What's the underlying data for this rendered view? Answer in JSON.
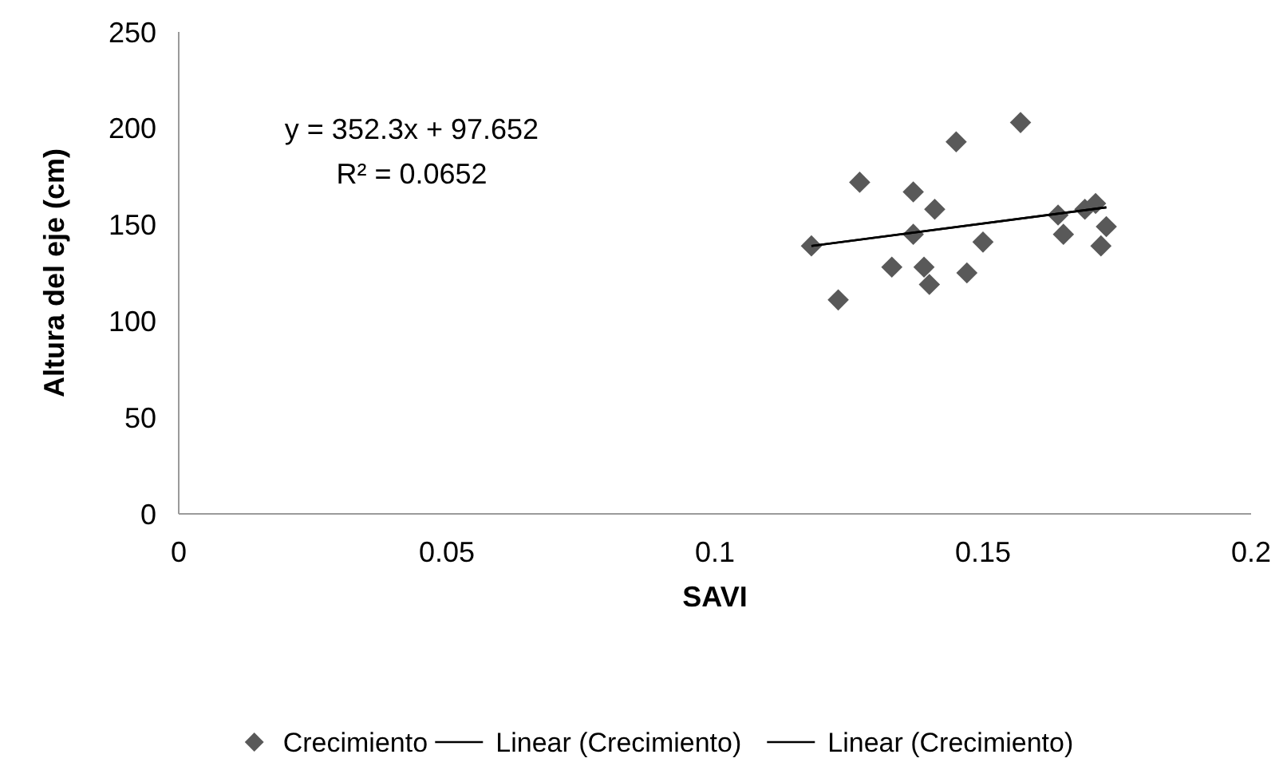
{
  "chart_data": {
    "type": "scatter",
    "xlabel": "SAVI",
    "ylabel": "Altura del eje (cm)",
    "xlim": [
      0,
      0.2
    ],
    "xticks": [
      0,
      0.05,
      0.1,
      0.15,
      0.2
    ],
    "ylim": [
      0,
      250
    ],
    "yticks": [
      0,
      50,
      100,
      150,
      200,
      250
    ],
    "grid": false,
    "legend": "bottom",
    "annotations": [
      "y = 352.3x + 97.652",
      "R² = 0.0652"
    ],
    "series": [
      {
        "name": "Crecimiento",
        "marker": "diamond",
        "color": "#595959",
        "x": [
          0.118,
          0.123,
          0.127,
          0.133,
          0.137,
          0.137,
          0.139,
          0.14,
          0.141,
          0.145,
          0.147,
          0.15,
          0.157,
          0.164,
          0.165,
          0.169,
          0.171,
          0.172,
          0.173
        ],
        "values": [
          139,
          111,
          172,
          128,
          167,
          145,
          128,
          119,
          158,
          193,
          125,
          141,
          203,
          155,
          145,
          158,
          161,
          139,
          149
        ]
      },
      {
        "name": "Linear (Crecimiento)",
        "type": "line",
        "marker": "none",
        "color": "#000000",
        "line_style": "solid",
        "x": [
          0.118,
          0.173
        ],
        "values": [
          139,
          159
        ]
      },
      {
        "name": "Linear (Crecimiento)",
        "type": "line",
        "marker": "none",
        "color": "#000000",
        "line_style": "solid",
        "x": [
          0.118,
          0.173
        ],
        "values": [
          139,
          159
        ]
      }
    ]
  }
}
